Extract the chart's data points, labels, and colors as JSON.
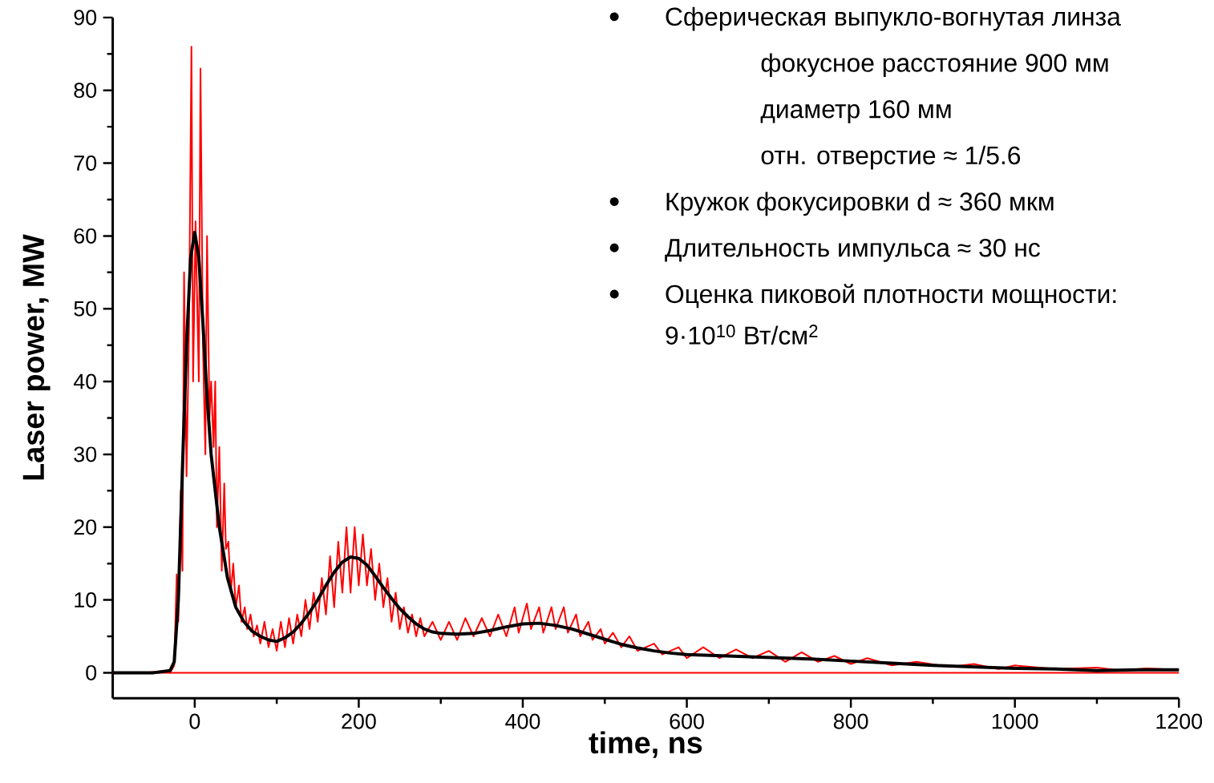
{
  "chart_data": {
    "type": "line",
    "xlabel": "time, ns",
    "ylabel": "Laser power, MW",
    "xlim": [
      -100,
      1200
    ],
    "xticks": [
      0,
      200,
      400,
      600,
      800,
      1000,
      1200
    ],
    "ylim": [
      -3.5,
      90
    ],
    "yticks": [
      0,
      10,
      20,
      30,
      40,
      50,
      60,
      70,
      80,
      90
    ],
    "series": [
      {
        "color": "#ff0000",
        "x": [
          -100,
          -60,
          -40,
          -30,
          -25,
          -22,
          -20,
          -17,
          -15,
          -13,
          -10,
          -7,
          -4,
          -2,
          1,
          5,
          7,
          10,
          13,
          15,
          18,
          20,
          23,
          25,
          27,
          30,
          33,
          36,
          38,
          41,
          44,
          47,
          50,
          54,
          57,
          61,
          64,
          68,
          72,
          76,
          80,
          85,
          90,
          95,
          100,
          105,
          110,
          115,
          120,
          125,
          130,
          135,
          140,
          145,
          150,
          155,
          160,
          165,
          170,
          175,
          180,
          185,
          190,
          195,
          200,
          205,
          210,
          215,
          220,
          225,
          230,
          235,
          240,
          245,
          250,
          255,
          260,
          265,
          270,
          275,
          280,
          290,
          300,
          310,
          320,
          330,
          340,
          350,
          360,
          370,
          380,
          390,
          395,
          405,
          410,
          420,
          425,
          435,
          440,
          450,
          455,
          465,
          470,
          480,
          485,
          495,
          500,
          510,
          520,
          530,
          540,
          560,
          570,
          590,
          600,
          620,
          640,
          660,
          680,
          700,
          720,
          740,
          760,
          780,
          800,
          820,
          850,
          880,
          920,
          950,
          980,
          1000,
          1050,
          1100,
          1130,
          1160,
          1200
        ],
        "values": [
          0,
          0,
          0.2,
          0,
          1,
          13.5,
          7,
          25,
          14,
          55,
          27,
          47,
          86,
          40,
          62,
          40,
          83,
          45,
          30,
          60,
          35,
          40,
          31,
          40,
          20,
          31,
          14,
          26,
          17,
          18,
          11,
          15,
          9,
          12,
          7,
          9,
          6,
          8,
          5,
          6.5,
          4,
          7,
          3.5,
          6,
          3,
          7,
          3.5,
          7.5,
          4,
          8,
          5,
          10,
          6,
          11,
          7,
          13,
          8,
          16,
          9,
          18,
          11,
          20,
          11,
          20,
          12,
          19,
          12,
          17,
          10,
          15,
          9,
          13,
          7,
          11,
          6,
          9,
          5.5,
          8,
          5,
          7.5,
          5,
          7,
          4.5,
          7,
          4.5,
          7.5,
          5,
          7.5,
          5,
          8,
          5,
          9,
          5.5,
          9.5,
          6,
          9,
          5.5,
          9,
          6,
          9,
          5.5,
          8,
          5,
          7,
          4.5,
          6,
          4,
          5.5,
          3.5,
          5,
          3,
          4,
          2.5,
          3.5,
          2,
          3.5,
          2,
          3.2,
          2,
          3,
          1.5,
          2.8,
          1.5,
          2.3,
          1.2,
          2,
          1,
          1.5,
          0.8,
          1.2,
          0.5,
          1,
          0.5,
          0.7,
          0.3,
          0.6,
          0.4
        ]
      },
      {
        "color": "#000000",
        "x": [
          -100,
          -50,
          -30,
          -25,
          -20,
          -15,
          -10,
          -5,
          0,
          5,
          10,
          15,
          20,
          30,
          40,
          50,
          60,
          70,
          80,
          90,
          100,
          110,
          120,
          130,
          140,
          150,
          160,
          170,
          180,
          190,
          200,
          210,
          220,
          230,
          240,
          250,
          260,
          270,
          280,
          290,
          300,
          320,
          340,
          360,
          380,
          400,
          420,
          440,
          460,
          480,
          500,
          520,
          540,
          560,
          580,
          600,
          650,
          700,
          750,
          800,
          850,
          900,
          950,
          1000,
          1050,
          1100,
          1150,
          1200
        ],
        "values": [
          0,
          0,
          0.3,
          1.5,
          10,
          28,
          45,
          57,
          60.5,
          57,
          48,
          38,
          30,
          20,
          13,
          9,
          7,
          5.7,
          5,
          4.5,
          4.3,
          4.8,
          5.6,
          6.8,
          8.3,
          10,
          12,
          13.8,
          15.2,
          15.9,
          15.7,
          14.8,
          13.3,
          11.7,
          10.2,
          8.8,
          7.7,
          6.7,
          6,
          5.6,
          5.4,
          5.3,
          5.4,
          5.8,
          6.3,
          6.7,
          6.8,
          6.5,
          6,
          5.3,
          4.6,
          3.9,
          3.4,
          3,
          2.7,
          2.5,
          2.3,
          2.1,
          1.9,
          1.6,
          1.3,
          1,
          0.8,
          0.6,
          0.5,
          0.3,
          0.4,
          0.4
        ]
      }
    ],
    "ref_lines": [
      {
        "axis": "y",
        "value": 0,
        "color": "#ff0000"
      }
    ],
    "annotations": [
      "Сферическая выпукло-вогнутая линза",
      "фокусное расстояние 900 мм",
      "диаметр 160 мм",
      "отн. отверстие ≈ 1/5.6",
      "Кружок фокусировки d ≈ 360 мкм",
      "Длительность импульса ≈ 30 нс",
      "Оценка пиковой плотности мощности:",
      "9·10$^{10}$ Вт/см$^{2}$"
    ]
  }
}
